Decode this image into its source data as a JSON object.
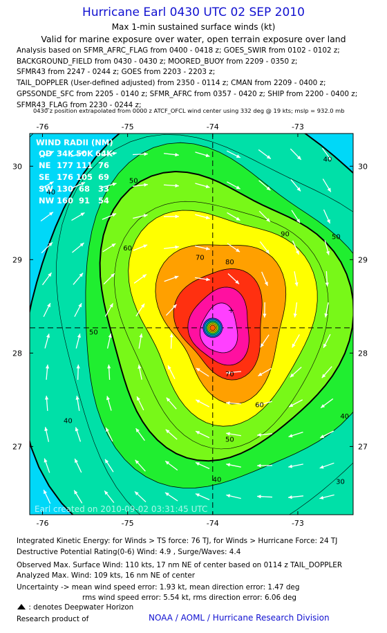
{
  "header": {
    "title": "Hurricane Earl 0430 UTC 02 SEP 2010",
    "subtitle": "Max 1-min sustained surface winds (kt)",
    "valid_for": "Valid for marine exposure over water, open terrain exposure over land",
    "analysis_lines": [
      "Analysis based on SFMR_AFRC_FLAG from 0400 - 0418 z; GOES_SWIR from 0102 - 0102 z;",
      "BACKGROUND_FIELD from 0430 - 0430 z; MOORED_BUOY from 2209 - 0350 z;",
      "SFMR43 from 2247 - 0244 z; GOES from 2203 - 2203 z;",
      "TAIL_DOPPLER (User-defined adjusted) from 2350 - 0114 z; CMAN from 2209 - 0400 z;",
      "GPSSONDE_SFC from 2205 - 0140 z; SFMR_AFRC from 0357 - 0420 z; SHIP from 2200 - 0400 z;",
      "SFMR43_FLAG from 2230 - 0244 z;"
    ],
    "position_note": "0430 z position extrapolated from 0000 z ATCF_OFCL wind center using 332 deg @ 19 kts; mslp = 932.0 mb"
  },
  "wind_radii": {
    "title": "WIND RADII (NM)",
    "header": [
      "QD",
      "34K",
      "50K",
      "64K"
    ],
    "rows": [
      [
        "NE",
        "177",
        "111",
        "76"
      ],
      [
        "SE",
        "176",
        "105",
        "69"
      ],
      [
        "SW",
        "130",
        "68",
        "33"
      ],
      [
        "NW",
        "160",
        "91",
        "54"
      ]
    ]
  },
  "watermark": "Earl   created on 2010-09-02 03:31:45 UTC",
  "chart_data": {
    "type": "contour",
    "xlabel": "",
    "ylabel": "",
    "x_ticks": [
      -76,
      -75,
      -74,
      -73
    ],
    "x_tick_labels": [
      "-76",
      "-75",
      "-74",
      "-73"
    ],
    "y_ticks": [
      27,
      28,
      29,
      30
    ],
    "y_tick_labels": [
      "27",
      "28",
      "29",
      "30"
    ],
    "xlim": [
      -76.15,
      -72.35
    ],
    "ylim": [
      26.27,
      30.35
    ],
    "center": {
      "lon": -74.0,
      "lat": 28.27
    },
    "contour_levels_kt": [
      30,
      40,
      50,
      60,
      70,
      80,
      90,
      100
    ],
    "contour_labels": [
      {
        "text": "40",
        "lon": -72.65,
        "lat": 30.05
      },
      {
        "text": "50",
        "lon": -74.93,
        "lat": 29.82
      },
      {
        "text": "50",
        "lon": -72.55,
        "lat": 29.22
      },
      {
        "text": "60",
        "lon": -75.0,
        "lat": 29.1
      },
      {
        "text": "90",
        "lon": -73.15,
        "lat": 29.25
      },
      {
        "text": "70",
        "lon": -74.15,
        "lat": 29.0
      },
      {
        "text": "80",
        "lon": -73.8,
        "lat": 28.95
      },
      {
        "text": "50",
        "lon": -75.4,
        "lat": 28.2
      },
      {
        "text": "40",
        "lon": -75.9,
        "lat": 29.7
      },
      {
        "text": "40",
        "lon": -75.7,
        "lat": 27.25
      },
      {
        "text": "70",
        "lon": -73.8,
        "lat": 27.75
      },
      {
        "text": "60",
        "lon": -73.45,
        "lat": 27.42
      },
      {
        "text": "50",
        "lon": -73.8,
        "lat": 27.05
      },
      {
        "text": "40",
        "lon": -73.95,
        "lat": 26.62
      },
      {
        "text": "40",
        "lon": -72.45,
        "lat": 27.3
      },
      {
        "text": "30",
        "lon": -72.5,
        "lat": 26.6
      }
    ],
    "fill_colors": [
      "#00f0ff",
      "#00d8f8",
      "#00e0a8",
      "#20ee30",
      "#78f818",
      "#ffff00",
      "#ffa000",
      "#ff3010",
      "#ff10a0",
      "#ff40ff"
    ]
  },
  "footer": {
    "ike": "Integrated Kinetic Energy:  for Winds > TS force: 76 TJ,  for Winds > Hurricane Force: 24 TJ",
    "dpr": "Destructive Potential Rating(0-6)   Wind: 4.9 , Surge/Waves: 4.4",
    "observed": "Observed Max. Surface Wind: 110 kts, 17 nm NE of center based on 0114 z TAIL_DOPPLER",
    "analyzed": "Analyzed Max. Wind: 109 kts, 16 nm NE of center",
    "uncertainty_1": "Uncertainty -> mean wind speed error: 1.93 kt,   mean direction error: 1.47 deg",
    "uncertainty_2": "rms wind speed error: 5.54 kt,   rms direction error: 6.06 deg",
    "legend_text": ": denotes Deepwater Horizon",
    "research_product": "Research product of",
    "division": "NOAA / AOML / Hurricane Research Division"
  }
}
